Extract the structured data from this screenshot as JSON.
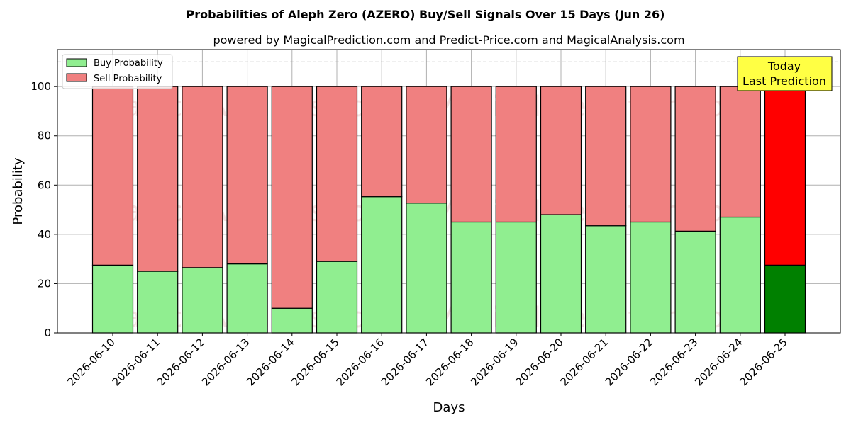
{
  "chart_data": {
    "type": "bar",
    "stacked": true,
    "title": "Probabilities of Aleph Zero (AZERO) Buy/Sell Signals Over 15 Days (Jun 26)",
    "subtitle": "powered by MagicalPrediction.com and Predict-Price.com and MagicalAnalysis.com",
    "xlabel": "Days",
    "ylabel": "Probability",
    "ylim": [
      0,
      115
    ],
    "yticks": [
      "0",
      "20",
      "40",
      "60",
      "80",
      "100"
    ],
    "grid": true,
    "legend_position": "top-left",
    "reference_line": 110,
    "categories": [
      "2026-06-10",
      "2026-06-11",
      "2026-06-12",
      "2026-06-13",
      "2026-06-14",
      "2026-06-15",
      "2026-06-16",
      "2026-06-17",
      "2026-06-18",
      "2026-06-19",
      "2026-06-20",
      "2026-06-21",
      "2026-06-22",
      "2026-06-23",
      "2026-06-24",
      "2026-06-25"
    ],
    "series": [
      {
        "name": "Buy Probability",
        "values": [
          27.5,
          25,
          26.5,
          28,
          10,
          29,
          55.3,
          52.7,
          45,
          45,
          48,
          43.5,
          45,
          41.3,
          47,
          27.5
        ]
      },
      {
        "name": "Sell Probability",
        "values": [
          72.5,
          75,
          73.5,
          72,
          90,
          71,
          44.7,
          47.3,
          55,
          55,
          52,
          56.5,
          55,
          58.7,
          53,
          72.5
        ]
      }
    ],
    "annotation": {
      "lines": [
        "Today",
        "Last Prediction"
      ],
      "category": "2026-06-25"
    }
  },
  "colors": {
    "buy": "#90ee90",
    "sell": "#f08080",
    "buy_highlight": "#008000",
    "sell_highlight": "#ff0000",
    "annotation_bg": "#ffff44"
  },
  "watermarks": [
    "MagicalAnalysis.com",
    "MagicalPrediction.com"
  ]
}
